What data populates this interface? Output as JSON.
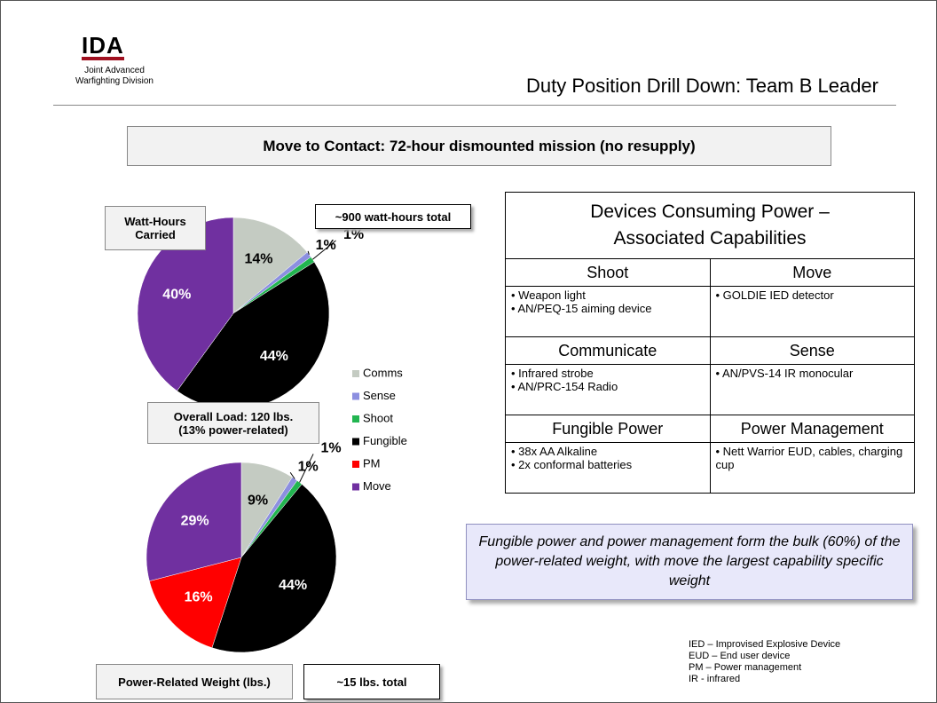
{
  "header": {
    "logo": "IDA",
    "org_lines": [
      "Joint Advanced",
      "Warfighting Division"
    ],
    "title": "Duty Position Drill Down:  Team B Leader"
  },
  "mission": "Move to Contact:  72-hour dismounted mission (no resupply)",
  "overall_load": [
    "Overall Load: 120 lbs.",
    "(13% power-related)"
  ],
  "chart_data": [
    {
      "type": "pie",
      "title": "Watt-Hours Carried",
      "annotations": [
        "~900 watt-hours total"
      ],
      "categories": [
        "Comms",
        "Sense",
        "Shoot",
        "Fungible",
        "PM",
        "Move"
      ],
      "values": [
        14,
        1,
        1,
        44,
        0,
        40
      ],
      "value_labels": [
        "14%",
        "1%",
        "1%",
        "44%",
        null,
        "40%"
      ],
      "colors": [
        "#c4cbc2",
        "#8c8fe0",
        "#22b550",
        "#000000",
        "#ff0000",
        "#7030a0"
      ]
    },
    {
      "type": "pie",
      "title": "Power-Related Weight (lbs.)",
      "annotations": [
        "~15 lbs. total"
      ],
      "categories": [
        "Comms",
        "Sense",
        "Shoot",
        "Fungible",
        "PM",
        "Move"
      ],
      "values": [
        9,
        1,
        1,
        44,
        16,
        29
      ],
      "value_labels": [
        "9%",
        "1%",
        "1%",
        "44%",
        "16%",
        "29%"
      ],
      "colors": [
        "#c4cbc2",
        "#8c8fe0",
        "#22b550",
        "#000000",
        "#ff0000",
        "#7030a0"
      ]
    }
  ],
  "table": {
    "title_lines": [
      "Devices Consuming Power –",
      "Associated Capabilities"
    ],
    "rows": [
      {
        "headers": [
          "Shoot",
          "Move"
        ],
        "items": [
          [
            "Weapon light",
            "AN/PEQ-15 aiming device"
          ],
          [
            "GOLDIE IED detector"
          ]
        ]
      },
      {
        "headers": [
          "Communicate",
          "Sense"
        ],
        "items": [
          [
            "Infrared strobe",
            "AN/PRC-154 Radio"
          ],
          [
            "AN/PVS-14 IR monocular"
          ]
        ]
      },
      {
        "headers": [
          "Fungible Power",
          "Power Management"
        ],
        "items": [
          [
            "38x AA Alkaline",
            "2x conformal batteries"
          ],
          [
            "Nett Warrior EUD, cables, charging cup"
          ]
        ]
      }
    ]
  },
  "callout": "Fungible power and power management form the bulk (60%) of the power-related weight, with move the largest capability specific weight",
  "abbreviations": [
    "IED – Improvised Explosive Device",
    "EUD – End user device",
    "PM – Power management",
    "IR - infrared"
  ]
}
